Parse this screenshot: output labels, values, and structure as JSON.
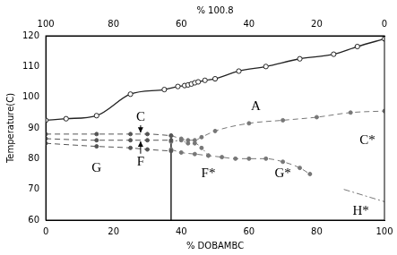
{
  "chart_data": {
    "type": "scatter",
    "x_label": "% DOBAMBC",
    "y_label": "Temperature(C)",
    "x2_label": "% 100.8",
    "xlim": [
      0,
      100
    ],
    "xticks": [
      0,
      20,
      40,
      60,
      80,
      100
    ],
    "x2lim": [
      100,
      0
    ],
    "x2ticks": [
      100,
      80,
      60,
      40,
      20,
      0
    ],
    "ylim": [
      60,
      120
    ],
    "yticks": [
      60,
      70,
      80,
      90,
      100,
      110,
      120
    ],
    "grid": false,
    "series": [
      {
        "color": "#222222",
        "marker": "circle_open",
        "line_style": "solid",
        "x": [
          0,
          6,
          15,
          25,
          35,
          39,
          41,
          42,
          43,
          44,
          45,
          47,
          50,
          57,
          65,
          75,
          85,
          92,
          100
        ],
        "values": [
          92.5,
          93,
          94,
          101,
          102.5,
          103.5,
          103.8,
          104,
          104.3,
          104.7,
          105,
          105.5,
          106,
          108.5,
          110,
          112.5,
          114,
          116.5,
          119
        ]
      },
      {
        "color": "#555555",
        "marker": "circle_filled",
        "line_style": "dashed",
        "x": [
          0,
          15,
          25,
          30,
          37
        ],
        "values": [
          88,
          88,
          88,
          88,
          87.5
        ]
      },
      {
        "color": "#555555",
        "marker": "circle_filled",
        "line_style": "dashed",
        "x": [
          0,
          15,
          25,
          30,
          37
        ],
        "values": [
          86.5,
          86,
          86,
          86,
          86
        ]
      },
      {
        "color": "#555555",
        "marker": "circle_filled",
        "line_style": "dashed",
        "x": [
          0,
          15,
          25,
          30,
          37
        ],
        "values": [
          85,
          84,
          83.5,
          83,
          82.5
        ]
      },
      {
        "color": "#777777",
        "marker": "circle_filled",
        "line_style": "dashed",
        "x": [
          37,
          40,
          42,
          44,
          46,
          50,
          60,
          70,
          80,
          90,
          100
        ],
        "values": [
          87.5,
          86.5,
          86,
          86,
          87,
          89,
          91.5,
          92.5,
          93.5,
          95,
          95.5
        ]
      },
      {
        "color": "#777777",
        "marker": "circle_filled",
        "line_style": "dotted",
        "x": [
          37,
          40,
          42,
          44,
          46,
          48
        ],
        "values": [
          85.5,
          86,
          85,
          85,
          83.5,
          81
        ]
      },
      {
        "color": "#777777",
        "marker": "circle_filled",
        "line_style": "dashed",
        "x": [
          37,
          40,
          44,
          48,
          52,
          56,
          60,
          65,
          70,
          75,
          78
        ],
        "values": [
          83,
          82,
          81.5,
          81,
          80.5,
          80,
          80,
          80,
          79,
          77,
          75
        ]
      },
      {
        "color": "#777777",
        "marker": "none",
        "line_style": "dashdot",
        "x": [
          88,
          100
        ],
        "values": [
          70,
          66
        ]
      },
      {
        "color": "#000000",
        "marker": "none",
        "line_style": "solid",
        "x": [
          37,
          37
        ],
        "values": [
          60,
          87.5
        ]
      }
    ],
    "annotations": [
      {
        "text": "A",
        "x": 62,
        "y": 97
      },
      {
        "text": "C",
        "x": 28,
        "y": 93.5,
        "arrow_to": {
          "x": 28,
          "y": 88.5
        }
      },
      {
        "text": "F",
        "x": 28,
        "y": 79,
        "arrow_to": {
          "x": 28,
          "y": 85.6
        }
      },
      {
        "text": "G",
        "x": 15,
        "y": 77
      },
      {
        "text": "C*",
        "x": 95,
        "y": 86
      },
      {
        "text": "F*",
        "x": 48,
        "y": 75
      },
      {
        "text": "G*",
        "x": 70,
        "y": 75
      },
      {
        "text": "H*",
        "x": 93,
        "y": 63
      }
    ]
  }
}
